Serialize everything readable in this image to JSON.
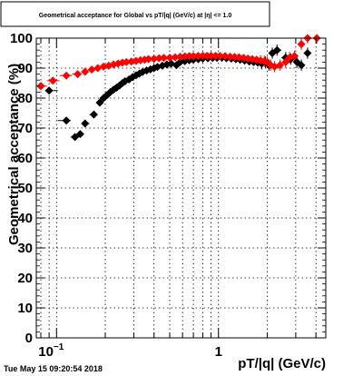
{
  "timestamp": "Tue May 15 09:20:54 2018",
  "chart_data": {
    "type": "scatter",
    "title": "Geometrical acceptance for Global vs pT/|q| (GeV/c) at |η| <= 1.0",
    "xlabel": "pT/|q| (GeV/c)",
    "ylabel": "Geometrical acceptance (%)",
    "x_scale": "log",
    "xlim": [
      0.075,
      4.6
    ],
    "ylim": [
      0,
      100
    ],
    "y_ticks": [
      0,
      10,
      20,
      30,
      40,
      50,
      60,
      70,
      80,
      90,
      100
    ],
    "x_tick_labels": [
      {
        "value": 0.1,
        "label": "10",
        "exponent": "−1"
      },
      {
        "value": 1,
        "label": "1",
        "exponent": ""
      }
    ],
    "grid": true,
    "series": [
      {
        "color": "#000000",
        "points": [
          [
            0.08,
            84
          ],
          [
            0.09,
            82.5
          ],
          [
            0.115,
            72.5
          ],
          [
            0.13,
            67
          ],
          [
            0.14,
            68
          ],
          [
            0.15,
            71.5
          ],
          [
            0.17,
            74.5
          ],
          [
            0.185,
            78.5
          ],
          [
            0.195,
            80
          ],
          [
            0.205,
            81
          ],
          [
            0.215,
            82
          ],
          [
            0.225,
            82.8
          ],
          [
            0.235,
            83.5
          ],
          [
            0.245,
            84.2
          ],
          [
            0.255,
            85
          ],
          [
            0.265,
            85.6
          ],
          [
            0.28,
            86.2
          ],
          [
            0.295,
            87
          ],
          [
            0.31,
            87.6
          ],
          [
            0.325,
            88.2
          ],
          [
            0.34,
            88.7
          ],
          [
            0.36,
            89.2
          ],
          [
            0.38,
            89.6
          ],
          [
            0.4,
            90
          ],
          [
            0.42,
            90.4
          ],
          [
            0.45,
            90.8
          ],
          [
            0.48,
            91.2
          ],
          [
            0.51,
            91.5
          ],
          [
            0.55,
            91
          ],
          [
            0.58,
            92
          ],
          [
            0.62,
            92.3
          ],
          [
            0.66,
            92.6
          ],
          [
            0.7,
            92.8
          ],
          [
            0.75,
            93
          ],
          [
            0.8,
            93.2
          ],
          [
            0.86,
            93.3
          ],
          [
            0.92,
            93.4
          ],
          [
            0.98,
            93.4
          ],
          [
            1.05,
            93.5
          ],
          [
            1.12,
            93.3
          ],
          [
            1.2,
            93.2
          ],
          [
            1.28,
            93
          ],
          [
            1.36,
            92.8
          ],
          [
            1.45,
            92.5
          ],
          [
            1.55,
            92.2
          ],
          [
            1.65,
            92
          ],
          [
            1.75,
            91.8
          ],
          [
            1.85,
            91.5
          ],
          [
            1.95,
            92
          ],
          [
            2.05,
            91
          ],
          [
            2.15,
            95
          ],
          [
            2.3,
            96
          ],
          [
            2.6,
            93.5
          ],
          [
            2.8,
            93
          ],
          [
            3.05,
            92
          ],
          [
            3.25,
            91
          ],
          [
            3.55,
            95
          ]
        ]
      },
      {
        "color": "#ff0000",
        "points": [
          [
            0.08,
            84
          ],
          [
            0.095,
            85.8
          ],
          [
            0.115,
            87.5
          ],
          [
            0.135,
            88
          ],
          [
            0.15,
            88.8
          ],
          [
            0.165,
            89.5
          ],
          [
            0.18,
            90
          ],
          [
            0.195,
            90.5
          ],
          [
            0.21,
            90.8
          ],
          [
            0.225,
            91.2
          ],
          [
            0.24,
            91.5
          ],
          [
            0.255,
            91.8
          ],
          [
            0.27,
            92
          ],
          [
            0.29,
            92.2
          ],
          [
            0.31,
            92.4
          ],
          [
            0.33,
            92.6
          ],
          [
            0.35,
            92.8
          ],
          [
            0.37,
            93
          ],
          [
            0.4,
            93.1
          ],
          [
            0.43,
            93.3
          ],
          [
            0.46,
            93.4
          ],
          [
            0.5,
            93.5
          ],
          [
            0.54,
            93.6
          ],
          [
            0.58,
            93.8
          ],
          [
            0.62,
            93.9
          ],
          [
            0.66,
            94
          ],
          [
            0.7,
            94
          ],
          [
            0.75,
            94.1
          ],
          [
            0.8,
            94.1
          ],
          [
            0.85,
            94.1
          ],
          [
            0.9,
            94.1
          ],
          [
            0.96,
            94.1
          ],
          [
            1.02,
            94
          ],
          [
            1.1,
            94
          ],
          [
            1.18,
            93.8
          ],
          [
            1.26,
            93.7
          ],
          [
            1.34,
            93.6
          ],
          [
            1.43,
            93.4
          ],
          [
            1.52,
            93.2
          ],
          [
            1.62,
            93
          ],
          [
            1.72,
            92.8
          ],
          [
            1.82,
            92.5
          ],
          [
            1.92,
            92.3
          ],
          [
            2.0,
            92
          ],
          [
            2.1,
            91
          ],
          [
            2.22,
            90.5
          ],
          [
            2.4,
            91
          ],
          [
            2.6,
            92
          ],
          [
            2.75,
            93.5
          ],
          [
            2.95,
            94
          ],
          [
            3.25,
            98
          ],
          [
            3.55,
            100
          ],
          [
            4.05,
            100
          ]
        ]
      }
    ]
  }
}
